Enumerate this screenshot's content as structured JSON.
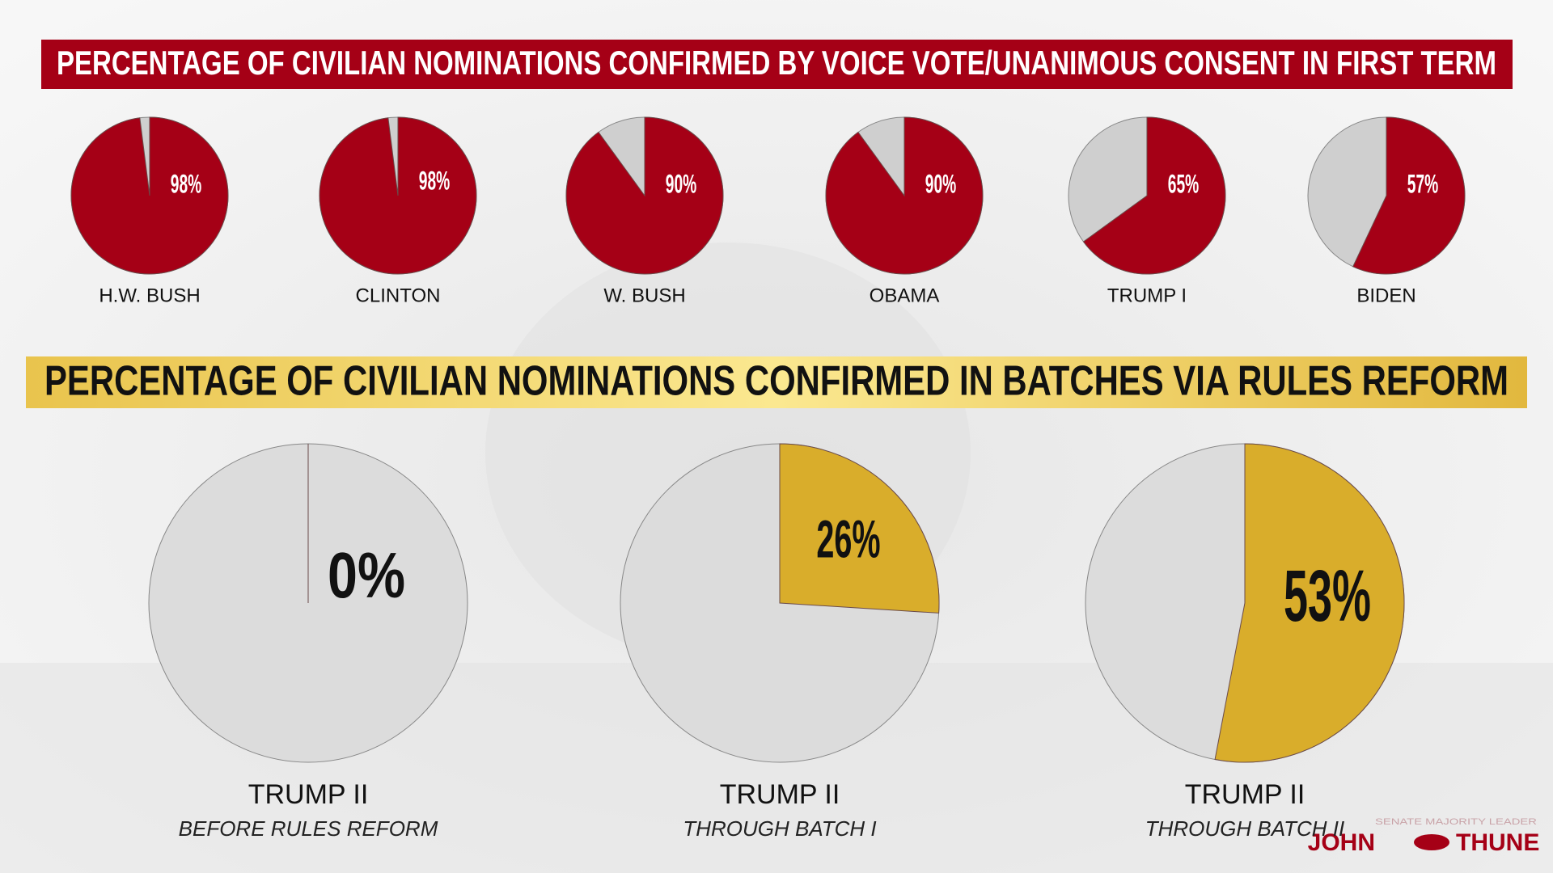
{
  "chart_data": [
    {
      "type": "pie",
      "title": "PERCENTAGE OF CIVILIAN NOMINATIONS CONFIRMED BY VOICE VOTE/UNANIMOUS CONSENT IN FIRST TERM",
      "categories": [
        "H.W. BUSH",
        "CLINTON",
        "W. BUSH",
        "OBAMA",
        "TRUMP I",
        "BIDEN"
      ],
      "values": [
        98,
        98,
        90,
        90,
        65,
        57
      ],
      "value_labels": [
        "98%",
        "98%",
        "90%",
        "90%",
        "65%",
        "57%"
      ],
      "color": "#a50016",
      "rest_color": "#cfcfcf"
    },
    {
      "type": "pie",
      "title": "PERCENTAGE OF CIVILIAN NOMINATIONS CONFIRMED IN BATCHES VIA RULES REFORM",
      "categories": [
        "TRUMP II",
        "TRUMP II",
        "TRUMP II"
      ],
      "subcategories": [
        "BEFORE RULES REFORM",
        "THROUGH BATCH I",
        "THROUGH BATCH II"
      ],
      "values": [
        0,
        26,
        53
      ],
      "value_labels": [
        "0%",
        "26%",
        "53%"
      ],
      "color": "#d9ad2b",
      "rest_color": "#dcdcdc"
    }
  ],
  "branding": {
    "role": "SENATE MAJORITY LEADER",
    "first": "JOHN",
    "last": "THUNE"
  }
}
